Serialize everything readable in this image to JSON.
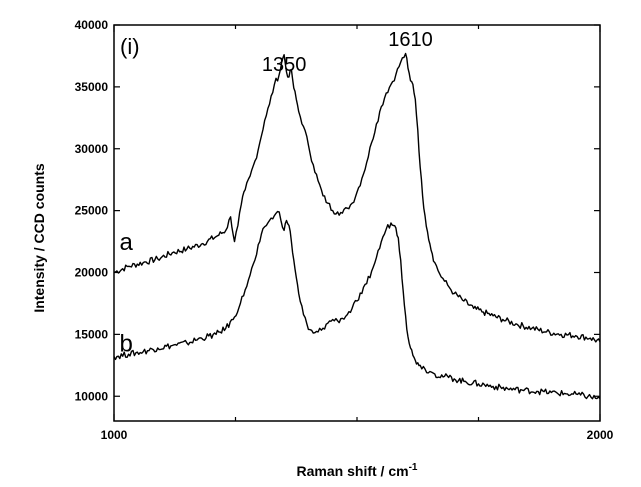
{
  "chart_data": {
    "type": "line",
    "panel_label": "(i)",
    "xlabel": "Raman shift / cm",
    "xlabel_superscript": "-1",
    "ylabel": "Intensity / CCD counts",
    "xlim": [
      1000,
      2000
    ],
    "ylim": [
      8000,
      40000
    ],
    "x_ticks": [
      1000,
      2000
    ],
    "y_ticks": [
      10000,
      15000,
      20000,
      25000,
      30000,
      35000,
      40000
    ],
    "grid": false,
    "legend": "none",
    "line_color": "#000000",
    "annotations": [
      {
        "text": "1350",
        "x": 1350,
        "y": 36300
      },
      {
        "text": "1610",
        "x": 1610,
        "y": 38300
      }
    ],
    "series": [
      {
        "label": "a",
        "label_pos": {
          "x": 1025,
          "y": 21800
        },
        "x": [
          1000,
          1030,
          1060,
          1090,
          1120,
          1150,
          1180,
          1210,
          1230,
          1240,
          1248,
          1255,
          1262,
          1270,
          1280,
          1290,
          1300,
          1310,
          1320,
          1330,
          1340,
          1345,
          1350,
          1355,
          1360,
          1365,
          1370,
          1375,
          1380,
          1390,
          1400,
          1410,
          1420,
          1430,
          1440,
          1450,
          1460,
          1470,
          1480,
          1490,
          1500,
          1510,
          1520,
          1530,
          1540,
          1550,
          1560,
          1570,
          1580,
          1590,
          1600,
          1605,
          1610,
          1615,
          1620,
          1625,
          1630,
          1635,
          1640,
          1645,
          1650,
          1655,
          1660,
          1670,
          1680,
          1690,
          1700,
          1720,
          1740,
          1760,
          1780,
          1800,
          1830,
          1860,
          1890,
          1920,
          1950,
          1980,
          2000
        ],
        "y": [
          20000,
          20500,
          20800,
          21100,
          21600,
          21900,
          22300,
          22900,
          23400,
          24500,
          22500,
          23800,
          25500,
          26700,
          27800,
          29000,
          30500,
          32300,
          33600,
          35200,
          36000,
          37000,
          37600,
          36200,
          35800,
          36400,
          34900,
          34000,
          33000,
          31800,
          30300,
          28700,
          27400,
          26200,
          25600,
          25000,
          24900,
          24800,
          25200,
          25600,
          26500,
          27600,
          28900,
          30500,
          32000,
          33400,
          34500,
          35200,
          36000,
          37000,
          37700,
          36500,
          35500,
          35200,
          34000,
          31500,
          28500,
          26200,
          24600,
          23300,
          22300,
          21500,
          20800,
          19900,
          19300,
          18800,
          18300,
          17700,
          17100,
          16800,
          16500,
          16200,
          15800,
          15500,
          15200,
          15000,
          14900,
          14700,
          14400
        ]
      },
      {
        "label": "b",
        "label_pos": {
          "x": 1025,
          "y": 13600
        },
        "x": [
          1000,
          1030,
          1060,
          1090,
          1120,
          1150,
          1180,
          1210,
          1230,
          1245,
          1260,
          1270,
          1280,
          1290,
          1300,
          1310,
          1320,
          1330,
          1340,
          1350,
          1355,
          1360,
          1365,
          1370,
          1375,
          1380,
          1390,
          1400,
          1410,
          1420,
          1430,
          1440,
          1450,
          1460,
          1470,
          1480,
          1490,
          1500,
          1510,
          1520,
          1530,
          1540,
          1550,
          1560,
          1570,
          1575,
          1580,
          1585,
          1590,
          1595,
          1600,
          1605,
          1610,
          1615,
          1620,
          1625,
          1630,
          1640,
          1650,
          1660,
          1680,
          1700,
          1720,
          1750,
          1780,
          1810,
          1840,
          1870,
          1900,
          1930,
          1960,
          2000
        ],
        "y": [
          13200,
          13400,
          13600,
          13900,
          14100,
          14300,
          14700,
          15000,
          15500,
          16200,
          17500,
          18600,
          19800,
          21000,
          22500,
          23700,
          24200,
          24600,
          24900,
          23400,
          24200,
          23800,
          22500,
          21000,
          19600,
          18300,
          16600,
          15400,
          15100,
          15200,
          15500,
          15900,
          16200,
          16100,
          16300,
          16600,
          17100,
          17700,
          18300,
          19100,
          20100,
          21200,
          22500,
          23500,
          24000,
          23800,
          23600,
          22800,
          21000,
          18500,
          16500,
          14800,
          13900,
          13300,
          12900,
          12700,
          12500,
          12200,
          12000,
          11800,
          11600,
          11400,
          11200,
          11000,
          10800,
          10600,
          10500,
          10400,
          10300,
          10200,
          10100,
          9800
        ]
      }
    ]
  }
}
